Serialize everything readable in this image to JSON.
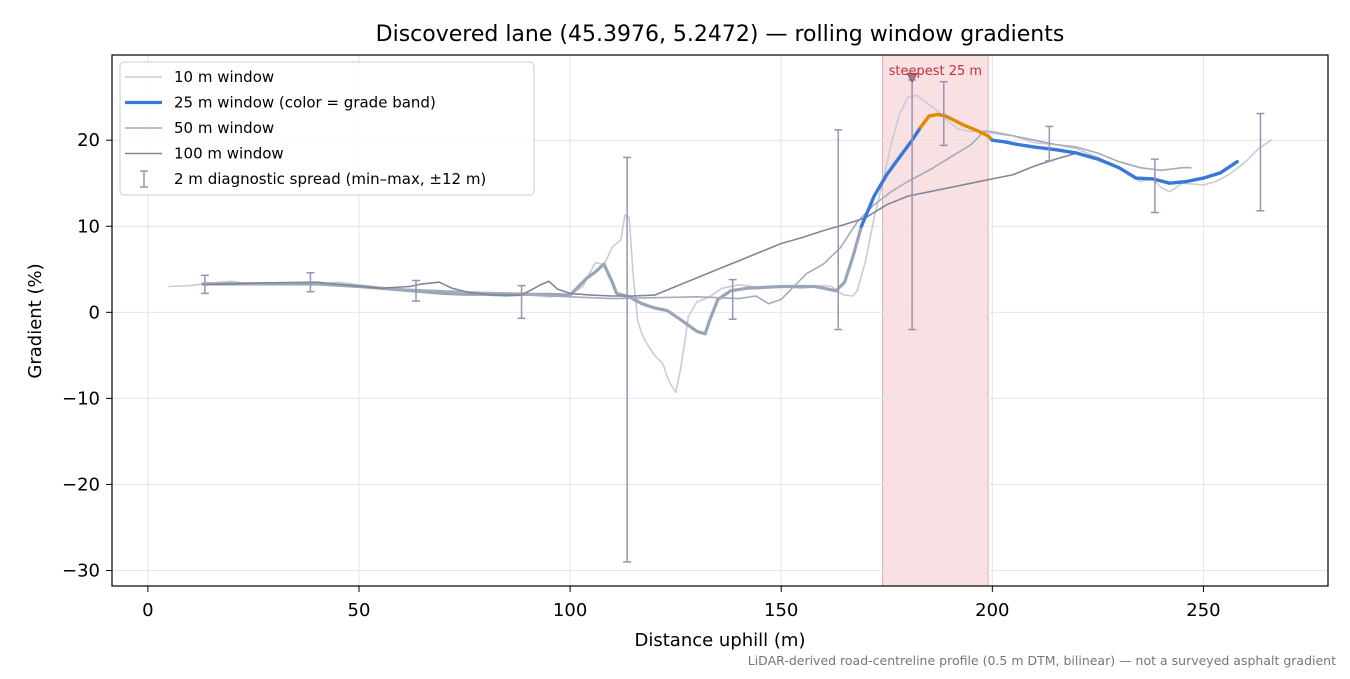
{
  "chart_data": {
    "type": "line",
    "title": "Discovered lane (45.3976, 5.2472) — rolling window gradients",
    "xlabel": "Distance uphill (m)",
    "ylabel": "Gradient (%)",
    "xlim": [
      -8.5,
      279.5
    ],
    "ylim": [
      -31.8,
      29.9
    ],
    "xticks": [
      0,
      50,
      100,
      150,
      200,
      250
    ],
    "xtick_labels": [
      "0",
      "50",
      "100",
      "150",
      "200",
      "250"
    ],
    "yticks": [
      -30,
      -20,
      -10,
      0,
      10,
      20
    ],
    "ytick_labels": [
      "−30",
      "−20",
      "−10",
      "0",
      "10",
      "20"
    ],
    "grid": true,
    "legend_position": "top-left",
    "footnote": "LiDAR-derived road-centreline profile (0.5 m DTM, bilinear) — not a surveyed asphalt gradient",
    "highlight": {
      "x_start": 174,
      "x_end": 199,
      "label": "steepest 25 m",
      "marker_x": 181,
      "marker_y": 27.2,
      "color": "#f5d6da",
      "label_color": "#c0303c"
    },
    "grade_band_colors": {
      "moderate": "#3a78d8",
      "steep": "#e08a00"
    },
    "series": [
      {
        "name": "10 m window",
        "color": "#c7ccd6",
        "points": [
          [
            5,
            3.0
          ],
          [
            10,
            3.1
          ],
          [
            15,
            3.4
          ],
          [
            20,
            3.6
          ],
          [
            25,
            3.2
          ],
          [
            30,
            3.4
          ],
          [
            35,
            3.3
          ],
          [
            40,
            3.2
          ],
          [
            45,
            3.5
          ],
          [
            50,
            3.2
          ],
          [
            55,
            2.9
          ],
          [
            60,
            2.7
          ],
          [
            65,
            2.5
          ],
          [
            70,
            2.4
          ],
          [
            75,
            2.2
          ],
          [
            80,
            2.1
          ],
          [
            85,
            2.0
          ],
          [
            90,
            2.0
          ],
          [
            95,
            1.8
          ],
          [
            100,
            2.1
          ],
          [
            103,
            3.0
          ],
          [
            106,
            5.8
          ],
          [
            108,
            5.5
          ],
          [
            110,
            7.6
          ],
          [
            112,
            8.4
          ],
          [
            113,
            11.3
          ],
          [
            114,
            11.0
          ],
          [
            115,
            4.0
          ],
          [
            116,
            -1.0
          ],
          [
            117,
            -2.5
          ],
          [
            118,
            -3.5
          ],
          [
            120,
            -5.0
          ],
          [
            122,
            -6.0
          ],
          [
            123,
            -7.5
          ],
          [
            124,
            -8.5
          ],
          [
            125,
            -9.3
          ],
          [
            126,
            -7.0
          ],
          [
            127,
            -4.0
          ],
          [
            128,
            -0.5
          ],
          [
            130,
            1.2
          ],
          [
            133,
            1.8
          ],
          [
            136,
            2.8
          ],
          [
            140,
            3.2
          ],
          [
            145,
            2.9
          ],
          [
            150,
            3.0
          ],
          [
            155,
            2.8
          ],
          [
            160,
            3.1
          ],
          [
            162,
            3.0
          ],
          [
            163,
            2.5
          ],
          [
            165,
            2.0
          ],
          [
            167,
            1.9
          ],
          [
            168,
            2.5
          ],
          [
            170,
            6.0
          ],
          [
            172,
            11.0
          ],
          [
            174,
            15.0
          ],
          [
            176,
            19.5
          ],
          [
            178,
            23.0
          ],
          [
            180,
            25.0
          ],
          [
            182,
            25.2
          ],
          [
            184,
            24.5
          ],
          [
            186,
            23.8
          ],
          [
            188,
            23.0
          ],
          [
            190,
            22.0
          ],
          [
            192,
            21.3
          ],
          [
            195,
            21.0
          ],
          [
            198,
            21.1
          ],
          [
            200,
            20.8
          ],
          [
            205,
            20.5
          ],
          [
            210,
            19.7
          ],
          [
            215,
            19.5
          ],
          [
            220,
            19.0
          ],
          [
            225,
            18.0
          ],
          [
            230,
            16.8
          ],
          [
            235,
            15.2
          ],
          [
            238,
            15.5
          ],
          [
            240,
            14.5
          ],
          [
            242,
            14.0
          ],
          [
            245,
            15.0
          ],
          [
            250,
            14.8
          ],
          [
            253,
            15.2
          ],
          [
            256,
            16.0
          ],
          [
            260,
            17.5
          ],
          [
            263,
            19.0
          ],
          [
            266,
            20.0
          ]
        ]
      },
      {
        "name": "25 m window (color = grade band)",
        "color": "#9aa6b8",
        "points": [
          [
            13,
            3.3
          ],
          [
            20,
            3.3
          ],
          [
            30,
            3.3
          ],
          [
            40,
            3.3
          ],
          [
            50,
            3.0
          ],
          [
            55,
            2.8
          ],
          [
            60,
            2.6
          ],
          [
            65,
            2.4
          ],
          [
            70,
            2.2
          ],
          [
            75,
            2.1
          ],
          [
            80,
            2.1
          ],
          [
            85,
            2.0
          ],
          [
            90,
            2.1
          ],
          [
            95,
            2.1
          ],
          [
            100,
            2.0
          ],
          [
            102,
            3.0
          ],
          [
            104,
            4.0
          ],
          [
            106,
            4.7
          ],
          [
            108,
            5.6
          ],
          [
            110,
            3.5
          ],
          [
            111,
            2.2
          ],
          [
            114,
            1.8
          ],
          [
            117,
            1.0
          ],
          [
            120,
            0.5
          ],
          [
            123,
            0.2
          ],
          [
            126,
            -0.8
          ],
          [
            128,
            -1.5
          ],
          [
            130,
            -2.2
          ],
          [
            132,
            -2.5
          ],
          [
            133,
            -1.0
          ],
          [
            135,
            1.5
          ],
          [
            138,
            2.5
          ],
          [
            142,
            2.8
          ],
          [
            146,
            2.9
          ],
          [
            150,
            3.0
          ],
          [
            155,
            3.0
          ],
          [
            158,
            3.0
          ],
          [
            161,
            2.7
          ],
          [
            163,
            2.5
          ],
          [
            165,
            3.5
          ],
          [
            167,
            6.5
          ],
          [
            169,
            10.0
          ]
        ]
      },
      {
        "name": "50 m window",
        "color": "#a3abbc",
        "points": [
          [
            13,
            3.4
          ],
          [
            25,
            3.3
          ],
          [
            40,
            3.4
          ],
          [
            50,
            3.0
          ],
          [
            60,
            2.7
          ],
          [
            70,
            2.5
          ],
          [
            80,
            2.3
          ],
          [
            90,
            2.2
          ],
          [
            95,
            1.9
          ],
          [
            100,
            1.8
          ],
          [
            110,
            1.6
          ],
          [
            120,
            1.7
          ],
          [
            130,
            1.8
          ],
          [
            140,
            1.6
          ],
          [
            144,
            1.9
          ],
          [
            147,
            1.0
          ],
          [
            150,
            1.5
          ],
          [
            153,
            3.0
          ],
          [
            156,
            4.5
          ],
          [
            160,
            5.6
          ],
          [
            164,
            7.5
          ],
          [
            168,
            10.5
          ],
          [
            172,
            12.5
          ],
          [
            176,
            14.0
          ],
          [
            180,
            15.2
          ],
          [
            185,
            16.5
          ],
          [
            190,
            18.0
          ],
          [
            195,
            19.5
          ],
          [
            198,
            21.0
          ],
          [
            200,
            21.0
          ],
          [
            205,
            20.5
          ],
          [
            210,
            20.0
          ],
          [
            215,
            19.5
          ],
          [
            220,
            19.2
          ],
          [
            225,
            18.5
          ],
          [
            230,
            17.5
          ],
          [
            235,
            16.8
          ],
          [
            240,
            16.5
          ],
          [
            245,
            16.8
          ],
          [
            247,
            16.8
          ]
        ]
      },
      {
        "name": "100 m window",
        "color": "#808796",
        "points": [
          [
            13,
            3.2
          ],
          [
            25,
            3.4
          ],
          [
            40,
            3.5
          ],
          [
            55,
            2.8
          ],
          [
            62,
            3.0
          ],
          [
            65,
            3.3
          ],
          [
            69,
            3.5
          ],
          [
            72,
            2.8
          ],
          [
            76,
            2.3
          ],
          [
            82,
            2.0
          ],
          [
            88,
            2.0
          ],
          [
            90,
            2.4
          ],
          [
            93,
            3.2
          ],
          [
            95,
            3.6
          ],
          [
            97,
            2.7
          ],
          [
            100,
            2.2
          ],
          [
            105,
            2.0
          ],
          [
            110,
            1.9
          ],
          [
            115,
            1.9
          ],
          [
            120,
            2.0
          ],
          [
            125,
            3.0
          ],
          [
            130,
            4.0
          ],
          [
            135,
            5.0
          ],
          [
            140,
            6.0
          ],
          [
            145,
            7.0
          ],
          [
            150,
            8.0
          ],
          [
            155,
            8.7
          ],
          [
            160,
            9.5
          ],
          [
            165,
            10.2
          ],
          [
            170,
            11.0
          ],
          [
            175,
            12.5
          ],
          [
            180,
            13.5
          ],
          [
            185,
            14.0
          ],
          [
            190,
            14.5
          ],
          [
            195,
            15.0
          ],
          [
            200,
            15.5
          ],
          [
            205,
            16.0
          ],
          [
            210,
            17.0
          ],
          [
            215,
            17.8
          ],
          [
            220,
            18.5
          ]
        ]
      }
    ],
    "grade_band_series": {
      "name": "25 m window (color = grade band)",
      "segments": [
        {
          "band": "moderate",
          "points": [
            [
              169,
              10.0
            ],
            [
              172,
              13.5
            ],
            [
              175,
              16.0
            ],
            [
              178,
              18.0
            ],
            [
              181,
              20.0
            ],
            [
              183,
              21.5
            ]
          ]
        },
        {
          "band": "steep",
          "points": [
            [
              183,
              21.5
            ],
            [
              185,
              22.8
            ],
            [
              187,
              23.0
            ],
            [
              189,
              22.8
            ],
            [
              191,
              22.3
            ],
            [
              193,
              21.8
            ],
            [
              196,
              21.2
            ],
            [
              199,
              20.5
            ],
            [
              200,
              20.0
            ]
          ]
        },
        {
          "band": "moderate",
          "points": [
            [
              200,
              20.0
            ],
            [
              203,
              19.8
            ],
            [
              206,
              19.5
            ],
            [
              210,
              19.2
            ],
            [
              215,
              18.9
            ],
            [
              220,
              18.5
            ],
            [
              225,
              17.8
            ],
            [
              230,
              16.8
            ],
            [
              234,
              15.6
            ],
            [
              238,
              15.5
            ],
            [
              242,
              15.0
            ],
            [
              246,
              15.2
            ],
            [
              250,
              15.6
            ],
            [
              254,
              16.2
            ],
            [
              258,
              17.5
            ]
          ]
        }
      ]
    },
    "error_bars": {
      "name": "2 m diagnostic spread (min–max, ±12 m)",
      "color": "#9a93b5",
      "items": [
        {
          "x": 13.5,
          "low": 2.2,
          "high": 4.3
        },
        {
          "x": 38.5,
          "low": 2.4,
          "high": 4.6
        },
        {
          "x": 63.5,
          "low": 1.3,
          "high": 3.7
        },
        {
          "x": 88.5,
          "low": -0.7,
          "high": 3.1
        },
        {
          "x": 113.5,
          "low": -29.0,
          "high": 18.0
        },
        {
          "x": 138.5,
          "low": -0.8,
          "high": 3.8
        },
        {
          "x": 163.5,
          "low": -2.0,
          "high": 21.2
        },
        {
          "x": 181.0,
          "low": -2.0,
          "high": 27.0
        },
        {
          "x": 188.5,
          "low": 19.4,
          "high": 26.8
        },
        {
          "x": 213.5,
          "low": 17.6,
          "high": 21.6
        },
        {
          "x": 238.5,
          "low": 11.6,
          "high": 17.8
        },
        {
          "x": 263.5,
          "low": 11.8,
          "high": 23.1
        }
      ]
    }
  }
}
